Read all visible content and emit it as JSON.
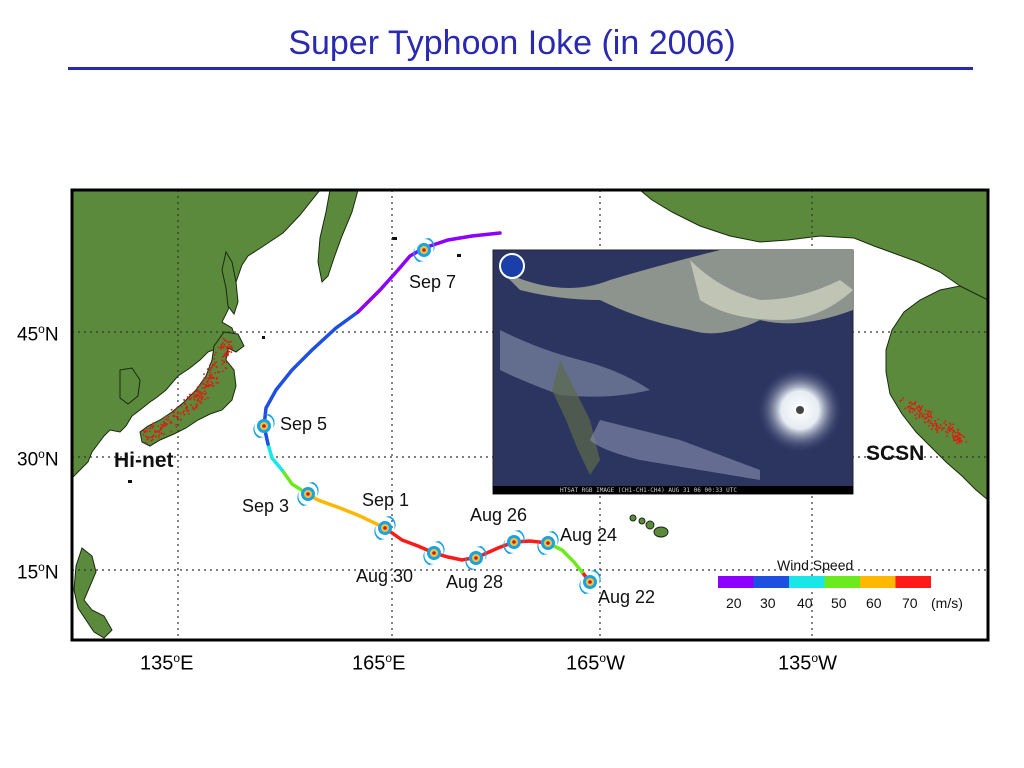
{
  "title": "Super Typhoon Ioke (in 2006)",
  "lat_labels": [
    {
      "value": "45",
      "deg": "o",
      "hemi": "N"
    },
    {
      "value": "30",
      "deg": "o",
      "hemi": "N"
    },
    {
      "value": "15",
      "deg": "o",
      "hemi": "N"
    }
  ],
  "lon_labels": [
    {
      "value": "135",
      "deg": "o",
      "hemi": "E"
    },
    {
      "value": "165",
      "deg": "o",
      "hemi": "E"
    },
    {
      "value": "165",
      "deg": "o",
      "hemi": "W"
    },
    {
      "value": "135",
      "deg": "o",
      "hemi": "W"
    }
  ],
  "networks": {
    "japan": "Hi-net",
    "california": "SCSN"
  },
  "track_dates": [
    "Sep 7",
    "Sep 5",
    "Sep 3",
    "Sep 1",
    "Aug 30",
    "Aug 28",
    "Aug 26",
    "Aug 24",
    "Aug 22"
  ],
  "legend": {
    "title": "Wind Speed",
    "ticks": [
      "20",
      "30",
      "40",
      "50",
      "60",
      "70"
    ],
    "unit": "(m/s)",
    "colors": [
      "#8b00ff",
      "#1f4fe0",
      "#19e6e6",
      "#6bea1e",
      "#ffb700",
      "#ff1a1a"
    ]
  },
  "satellite_caption": "HTSAT RGB IMAGE (CH1-CH1-CH4)   AUG 31 06  00:33 UTC",
  "colors": {
    "title": "#2a2ab0",
    "land": "#5b8a3c",
    "sea": "#ffffff",
    "stations": "#e01a12"
  }
}
